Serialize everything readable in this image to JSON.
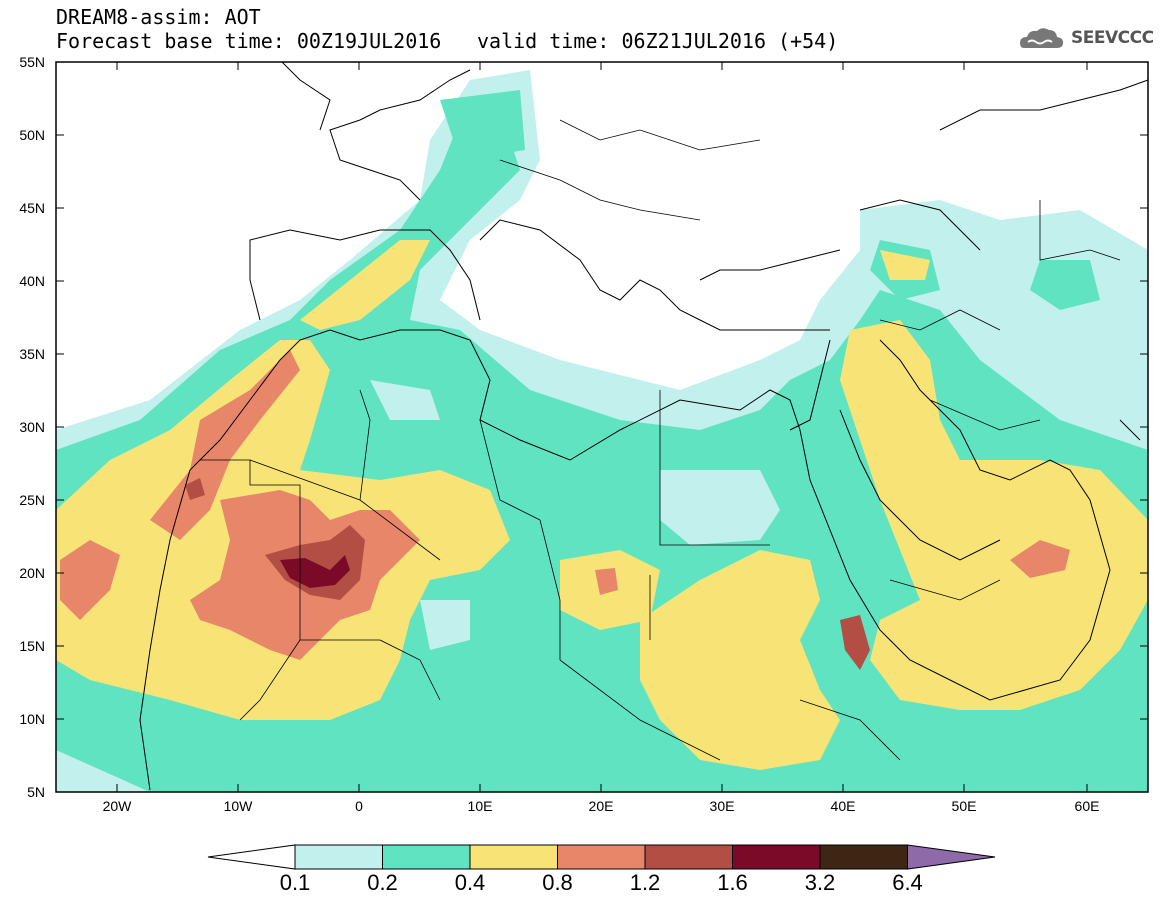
{
  "header": {
    "line1": "DREAM8-assim: AOT",
    "line2": "Forecast base time: 00Z19JUL2016",
    "valid": "valid time: 06Z21JUL2016 (+54)"
  },
  "logo": {
    "text": "SEEVCCC",
    "icon": "cloud-icon"
  },
  "map": {
    "lat_labels": [
      "55N",
      "50N",
      "45N",
      "40N",
      "35N",
      "30N",
      "25N",
      "20N",
      "15N",
      "10N",
      "5N"
    ],
    "lon_labels": [
      "20W",
      "10W",
      "0",
      "10E",
      "20E",
      "30E",
      "40E",
      "50E",
      "60E"
    ]
  },
  "colorbar": {
    "labels": [
      "0.1",
      "0.2",
      "0.4",
      "0.8",
      "1.2",
      "1.6",
      "3.2",
      "6.4"
    ],
    "colors": [
      "#ffffff",
      "#c2f0ec",
      "#5fe3c0",
      "#f8e476",
      "#e8866a",
      "#b24e43",
      "#7a0a28",
      "#3e2514",
      "#8e6aa8"
    ]
  }
}
